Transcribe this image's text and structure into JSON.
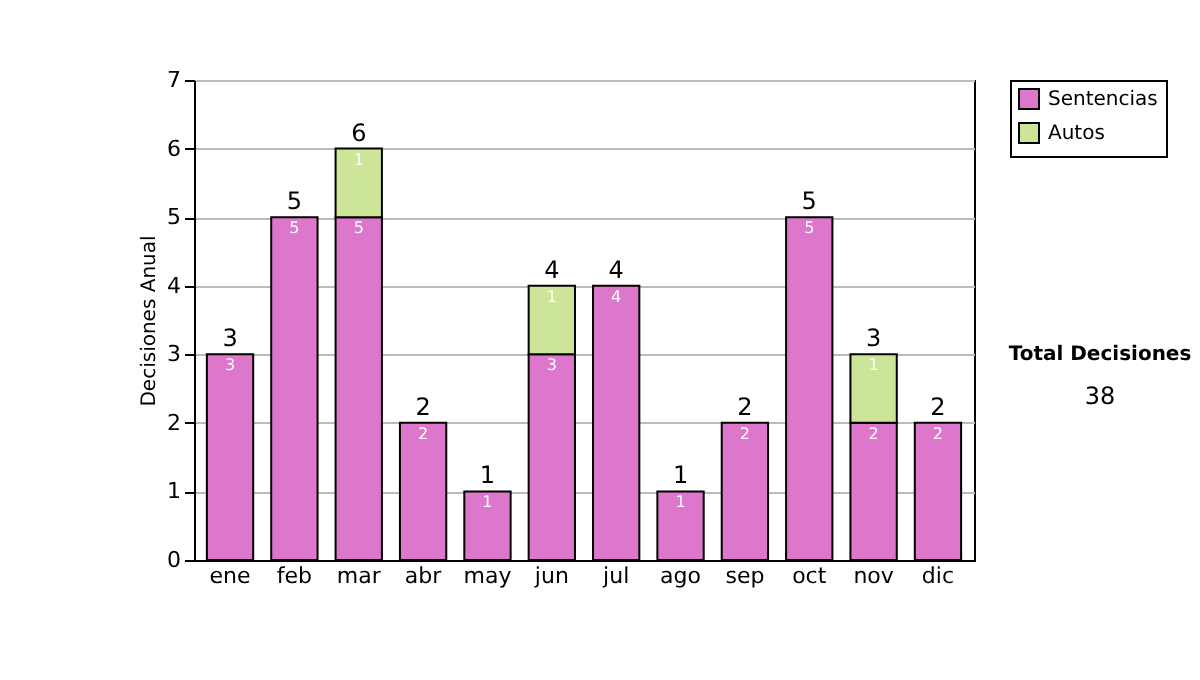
{
  "chart_data": {
    "type": "bar",
    "stacked": true,
    "ylabel": "Decisiones Anual",
    "categories": [
      "ene",
      "feb",
      "mar",
      "abr",
      "may",
      "jun",
      "jul",
      "ago",
      "sep",
      "oct",
      "nov",
      "dic"
    ],
    "series": [
      {
        "name": "Sentencias",
        "color": "#dd77cc",
        "values": [
          3,
          5,
          5,
          2,
          1,
          3,
          4,
          1,
          2,
          5,
          2,
          2
        ]
      },
      {
        "name": "Autos",
        "color": "#cce599",
        "values": [
          null,
          null,
          1,
          null,
          null,
          1,
          null,
          null,
          null,
          null,
          1,
          null
        ]
      }
    ],
    "totals": [
      "3",
      "5",
      "6",
      "2",
      "1",
      "4",
      "4",
      "1",
      "2",
      "5",
      "3",
      "2"
    ],
    "ylim": [
      0,
      7
    ],
    "yticks": [
      0,
      1,
      2,
      3,
      4,
      5,
      6,
      7
    ],
    "grid": "y",
    "legend": "right",
    "data_labels": true,
    "annotations": [
      "Total Decisiones",
      "38"
    ]
  }
}
